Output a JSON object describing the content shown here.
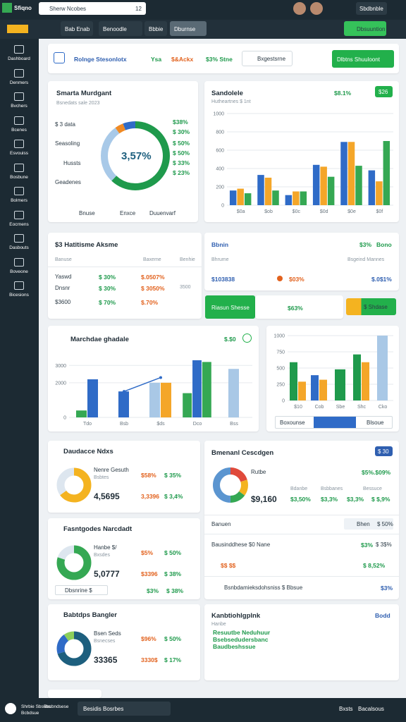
{
  "topbar": {
    "brand": "Sfiqno",
    "search": "Sherw Ncobes",
    "badge": "12",
    "account": "Sbdbnble"
  },
  "nav": {
    "tabs": [
      "Bab Enab",
      "Benoodle",
      "Bbbie",
      "Dburnse"
    ],
    "action": "Dbsuuntion"
  },
  "sidebar": [
    "Dashboard",
    "Denmers",
    "Bvchers",
    "Bcenes",
    "Esvouiss",
    "Bosbune",
    "Bolmers",
    "Eocrnens",
    "Dasbouts",
    "Boveone",
    "Bicesions"
  ],
  "filters": {
    "range": "Rolnge Stesonlotx",
    "kpis": [
      "Ysa",
      "$&Ackx",
      "$3% Stne"
    ],
    "search": "Bxgestsrne",
    "button": "Dlbtns Shuuloont"
  },
  "donut_card": {
    "title": "Smarta Murdgant",
    "subtitle": "Bsnedats sale 2023",
    "rows": [
      "$ 3 data",
      "Seasoling",
      "Hussts",
      "Geadenes"
    ],
    "center": "3,57%",
    "segments": [
      {
        "value": 62,
        "color": "#1f9a4c"
      },
      {
        "value": 28,
        "color": "#a8c9e8"
      },
      {
        "value": 4,
        "color": "#f08a24"
      },
      {
        "value": 6,
        "color": "#2f6bc7"
      }
    ],
    "side": [
      "$38%",
      "$ 30%",
      "$ 50%",
      "$ 50%",
      "$ 33%",
      "$ 23%"
    ],
    "legend": [
      "Bnuse",
      "Enxce",
      "Duuenvarf"
    ]
  },
  "bar_card": {
    "title": "Sandolele",
    "subtitle": "Hutheartnes $ 1nt",
    "kpi": "$8.1%",
    "badge": "$26",
    "chart": {
      "ylim": [
        0,
        1000
      ],
      "yticks": [
        0,
        200,
        400,
        600,
        800,
        1000
      ],
      "categories": [
        "$0a",
        "$ob",
        "$0c",
        "$0d",
        "$0e",
        "$0f"
      ],
      "series": [
        {
          "color": "#2f6bc7",
          "values": [
            160,
            330,
            110,
            440,
            690,
            380
          ]
        },
        {
          "color": "#f4a629",
          "values": [
            180,
            300,
            150,
            420,
            690,
            260
          ]
        },
        {
          "color": "#35a853",
          "values": [
            130,
            160,
            150,
            310,
            430,
            700
          ]
        }
      ]
    }
  },
  "table_card": {
    "title": "$3 Hatitisme Aksme",
    "headers": [
      "Banuse",
      "Baxeme",
      "Benhie"
    ],
    "rows": [
      [
        "Yaswd",
        "$ 30%",
        "$.0507%"
      ],
      [
        "Dnsnr",
        "$ 30%",
        "$ 3050%",
        "3500"
      ],
      [
        "$3600",
        "$ 70%",
        "$.70%"
      ]
    ]
  },
  "status_card": {
    "title": "Bbnin",
    "kpi": "$3%",
    "kpi2": "Bono",
    "headers": [
      "Bhrume",
      "Bsgeind Mannes"
    ],
    "row": [
      "$103838",
      "$03%",
      "$.0$1%"
    ],
    "actions": [
      "Riasun Shesse",
      "$63%",
      "$ Shdase"
    ]
  },
  "combo_card": {
    "title": "Marchdae ghadale",
    "kpi": "$.$0",
    "chart": {
      "ylim": [
        0,
        3500
      ],
      "yticks": [
        0,
        2000,
        3000
      ],
      "categories": [
        "Tdo",
        "Bsb",
        "$ds",
        "Dco",
        "Bss"
      ],
      "series": [
        {
          "color": "#35a853",
          "values": [
            400,
            null,
            null,
            1400,
            null
          ]
        },
        {
          "color": "#2f6bc7",
          "values": [
            2200,
            1500,
            null,
            3300,
            null
          ]
        },
        {
          "color": "#35a853",
          "values": [
            null,
            null,
            null,
            3200,
            null
          ]
        },
        {
          "color": "#a9c8e6",
          "values": [
            null,
            null,
            2000,
            null,
            2800
          ]
        },
        {
          "color": "#f4a629",
          "values": [
            null,
            null,
            2000,
            null,
            null
          ]
        }
      ],
      "line": {
        "color": "#2f6bc7",
        "values": [
          null,
          1500,
          2300,
          null,
          null
        ]
      }
    }
  },
  "side_card": {
    "chart": {
      "ylim": [
        0,
        1000
      ],
      "yticks": [
        0,
        250,
        500,
        750,
        1000
      ],
      "categories": [
        "$10",
        "Cob",
        "Sbe",
        "Shc",
        "Cko"
      ],
      "series": [
        {
          "color": "#1f9a4c",
          "values": [
            590,
            null,
            480,
            710,
            null
          ]
        },
        {
          "color": "#2f6bc7",
          "values": [
            null,
            390,
            null,
            null,
            null
          ]
        },
        {
          "color": "#f4a629",
          "values": [
            290,
            320,
            null,
            590,
            null
          ]
        },
        {
          "color": "#a9c8e6",
          "values": [
            null,
            null,
            null,
            null,
            1000
          ]
        }
      ]
    },
    "footer": [
      "Boxounse",
      "Blsoue"
    ]
  },
  "mini_cards": [
    {
      "title": "Daudacce Ndxs",
      "name": "Nenre Gesuth",
      "sub": "Bsbtes",
      "value": "4,5695",
      "kpis": [
        "$58%",
        "$ 35%",
        "3,3396",
        "$ 3,4%"
      ],
      "segments": [
        {
          "value": 65,
          "color": "#f4b320"
        },
        {
          "value": 35,
          "color": "#dde6ef"
        }
      ]
    },
    {
      "title": "Fasntgodes Narcdadt",
      "name": "Hanbe $/",
      "sub": "Bxsdes",
      "value": "5,0777",
      "kpis": [
        "$5%",
        "$ 50%",
        "$3396",
        "$ 38%"
      ],
      "segments": [
        {
          "value": 80,
          "color": "#35a853"
        },
        {
          "value": 20,
          "color": "#dde6ef"
        }
      ],
      "footer": "Dbsnrine $",
      "footer_kpis": [
        "$3%",
        "$ 38%"
      ]
    },
    {
      "title": "Babtdps Bangler",
      "name": "Bsen Seds",
      "sub": "Bsnecses",
      "value": "33365",
      "kpis": [
        "$96%",
        "$ 50%",
        "3330$",
        "$ 17%"
      ],
      "segments": [
        {
          "value": 70,
          "color": "#1d5f7e"
        },
        {
          "value": 20,
          "color": "#2f6bc7"
        },
        {
          "value": 10,
          "color": "#8ccf5a"
        }
      ]
    }
  ],
  "right_card": {
    "title": "Bmenanl Cescdgen",
    "badge": "$ 30",
    "label": "Rutbe",
    "value": "$9,160",
    "kpi": "$5%.$09%",
    "headers": [
      "Bdanbe",
      "Bsbbanes",
      "Bessuce"
    ],
    "kpis": [
      "$3,50%",
      "$3,3%",
      "$3,3%",
      "$ $,9%"
    ],
    "segments": [
      {
        "value": 20,
        "color": "#e04a3b"
      },
      {
        "value": 15,
        "color": "#f4b320"
      },
      {
        "value": 15,
        "color": "#35a853"
      },
      {
        "value": 50,
        "color": "#5b95d0"
      }
    ],
    "section": "Banuen",
    "tags": [
      "Bhen",
      "$ 50%"
    ],
    "list": [
      [
        "Bausinddhese $0 Nane",
        "$3%",
        "$ 3$%"
      ],
      [
        "$$ $$",
        "$ 8,52%"
      ]
    ],
    "footer": "Bsnbdamieksdohsniss $ Bbsue",
    "footer_kpi": "$3%"
  },
  "links_card": {
    "title": "Kanbtiohlgplnk",
    "action": "Bodd",
    "lines": [
      "Hanbe",
      "Resuutbe Neduhuur",
      "Bsebsedudersbanc",
      "Baudbeshssue"
    ]
  },
  "bottombar": {
    "brand": [
      "Shrbie Sbsubs",
      "Bcbdsue"
    ],
    "extra": "Bxcbndsese",
    "select": "Besidis Bosrbes",
    "right": [
      "Bxsts",
      "Bacalsous"
    ]
  }
}
